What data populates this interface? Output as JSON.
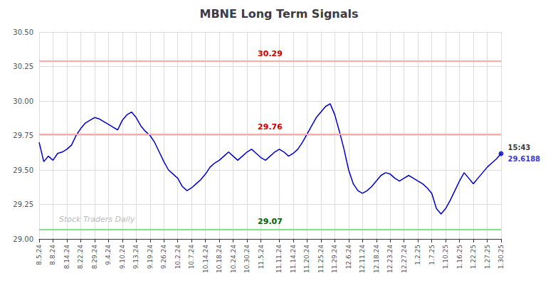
{
  "chart_data": {
    "type": "line",
    "title": "MBNE Long Term Signals",
    "categories": [
      "8.5.24",
      null,
      null,
      "8.8.24",
      null,
      null,
      "8.14.24",
      null,
      null,
      "8.22.24",
      null,
      null,
      "8.29.24",
      null,
      null,
      "9.4.24",
      null,
      null,
      "9.10.24",
      null,
      null,
      "9.13.24",
      null,
      null,
      "9.19.24",
      null,
      null,
      "9.26.24",
      null,
      null,
      "10.2.24",
      null,
      null,
      "10.7.24",
      null,
      null,
      "10.14.24",
      null,
      null,
      "10.18.24",
      null,
      null,
      "10.24.24",
      null,
      null,
      "10.30.24",
      null,
      null,
      "11.5.24",
      null,
      null,
      null,
      "11.11.24",
      null,
      null,
      "11.14.24",
      null,
      null,
      "11.20.24",
      null,
      null,
      "11.25.24",
      null,
      null,
      "11.29.24",
      null,
      null,
      "12.6.24",
      null,
      null,
      "12.11.24",
      null,
      null,
      "12.18.24",
      null,
      null,
      "12.23.24",
      null,
      null,
      "12.27.24",
      null,
      null,
      "1.2.25",
      null,
      null,
      "1.7.25",
      null,
      null,
      "1.10.25",
      null,
      null,
      "1.16.25",
      null,
      null,
      "1.22.25",
      null,
      null,
      "1.27.25",
      null,
      null,
      "1.30.25"
    ],
    "values": [
      29.7,
      29.56,
      29.6,
      29.57,
      29.62,
      29.63,
      29.65,
      29.68,
      29.75,
      29.8,
      29.84,
      29.86,
      29.88,
      29.87,
      29.85,
      29.83,
      29.81,
      29.79,
      29.86,
      29.9,
      29.92,
      29.88,
      29.82,
      29.78,
      29.75,
      29.7,
      29.63,
      29.56,
      29.5,
      29.47,
      29.44,
      29.38,
      29.35,
      29.37,
      29.4,
      29.43,
      29.47,
      29.52,
      29.55,
      29.57,
      29.6,
      29.63,
      29.6,
      29.57,
      29.6,
      29.63,
      29.65,
      29.62,
      29.59,
      29.57,
      29.6,
      29.63,
      29.65,
      29.63,
      29.6,
      29.62,
      29.65,
      29.7,
      29.76,
      29.82,
      29.88,
      29.92,
      29.96,
      29.98,
      29.9,
      29.78,
      29.65,
      29.5,
      29.4,
      29.35,
      29.33,
      29.35,
      29.38,
      29.42,
      29.46,
      29.48,
      29.47,
      29.44,
      29.42,
      29.44,
      29.46,
      29.44,
      29.42,
      29.4,
      29.37,
      29.33,
      29.22,
      29.18,
      29.22,
      29.28,
      29.35,
      29.42,
      29.48,
      29.44,
      29.4,
      29.44,
      29.48,
      29.52,
      29.55,
      29.58,
      29.6188
    ],
    "color": "#0000cc",
    "ylim": [
      29.0,
      30.5
    ],
    "yticks": [
      {
        "value": 29.0,
        "label": "29.00"
      },
      29.25,
      {
        "value": 29.5,
        "label": "29.50"
      },
      29.75,
      {
        "value": 30.0,
        "label": "30.00"
      },
      30.25,
      {
        "value": 30.5,
        "label": "30.50"
      }
    ],
    "grid": true,
    "hlines": [
      {
        "value": 30.29,
        "label": "30.29",
        "color": "#ffaaaa",
        "label_color": "#cc0000"
      },
      {
        "value": 29.76,
        "label": "29.76",
        "color": "#ffaaaa",
        "label_color": "#cc0000"
      },
      {
        "value": 29.07,
        "label": "29.07",
        "color": "#88dd88",
        "label_color": "#006600"
      }
    ],
    "last_point": {
      "color": "#0000cc",
      "labels": [
        {
          "text": "15:43",
          "color": "#000000"
        },
        {
          "text": "29.6188",
          "color": "#0000cc"
        }
      ]
    },
    "watermark": {
      "text": "Stock Traders Daily",
      "color": "#bbbbbb"
    }
  }
}
